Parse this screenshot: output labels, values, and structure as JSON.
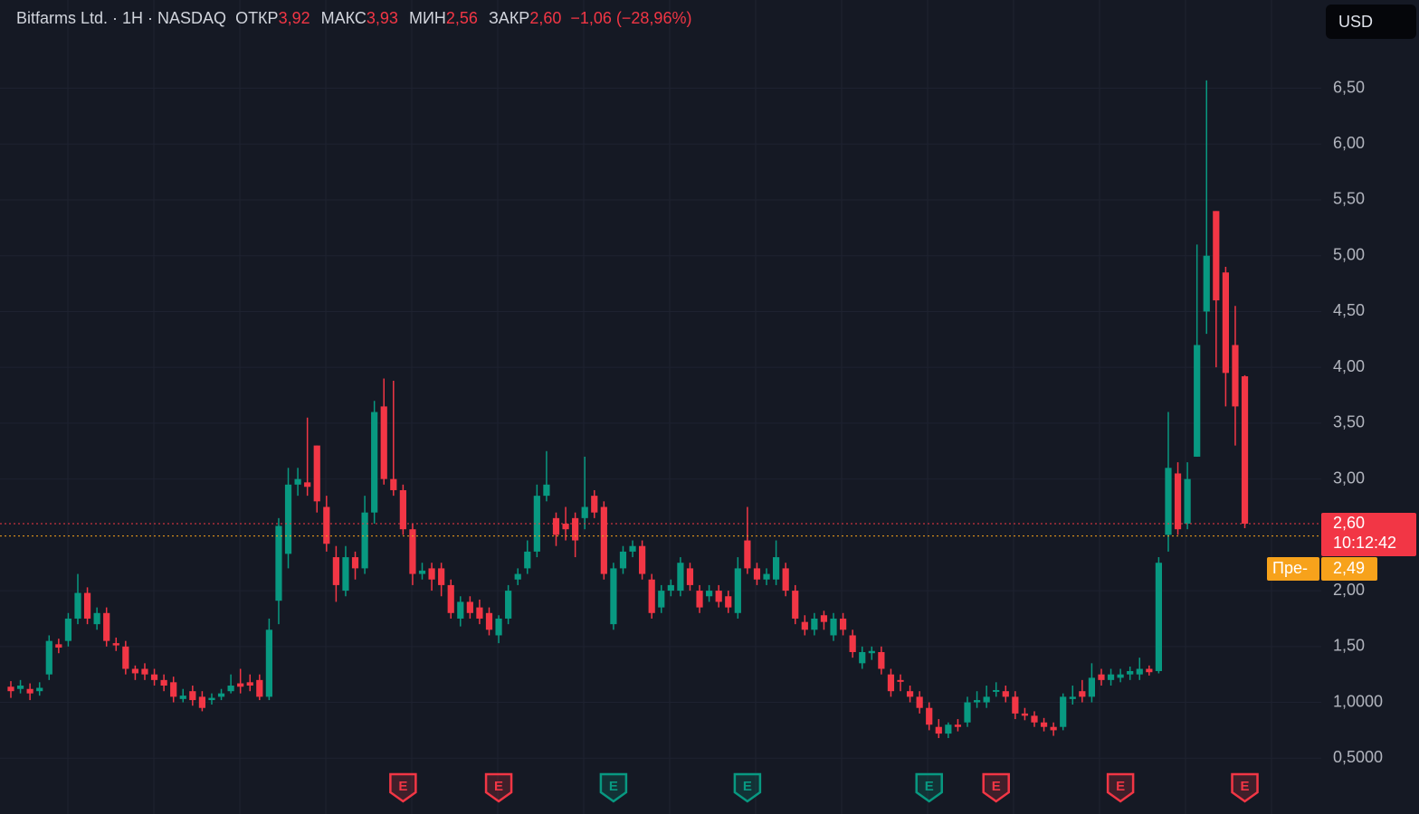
{
  "header": {
    "symbol": "Bitfarms Ltd. · 1H · NASDAQ",
    "fields": [
      {
        "name": "ОТКР",
        "value": "3,92"
      },
      {
        "name": "МАКС",
        "value": "3,93"
      },
      {
        "name": "МИН",
        "value": "2,56"
      },
      {
        "name": "ЗАКР",
        "value": "2,60"
      }
    ],
    "change": "−1,06 (−28,96%)",
    "currency": "USD"
  },
  "chart_data": {
    "type": "candlestick",
    "up_color": "#089981",
    "down_color": "#f23645",
    "grid": true,
    "ylim": [
      0,
      7.29
    ],
    "yticks": [
      {
        "value": 6.5,
        "label": "6,50"
      },
      {
        "value": 6,
        "label": "6,00"
      },
      {
        "value": 5.5,
        "label": "5,50"
      },
      {
        "value": 5,
        "label": "5,00"
      },
      {
        "value": 4.5,
        "label": "4,50"
      },
      {
        "value": 4,
        "label": "4,00"
      },
      {
        "value": 3.5,
        "label": "3,50"
      },
      {
        "value": 3,
        "label": "3,00"
      },
      {
        "value": 2,
        "label": "2,00"
      },
      {
        "value": 1.5,
        "label": "1,50"
      },
      {
        "value": 1,
        "label": "1,0000"
      },
      {
        "value": 0.5,
        "label": "0,5000"
      }
    ],
    "open": [
      1.14,
      1.12,
      1.12,
      1.1,
      1.25,
      1.52,
      1.55,
      1.75,
      1.98,
      1.7,
      1.8,
      1.53,
      1.5,
      1.3,
      1.3,
      1.25,
      1.2,
      1.18,
      1.03,
      1.1,
      1.05,
      1.02,
      1.05,
      1.1,
      1.17,
      1.18,
      1.2,
      1.05,
      1.91,
      2.33,
      2.95,
      2.97,
      3.3,
      2.75,
      2.3,
      2.0,
      2.3,
      2.2,
      2.7,
      3.65,
      3.0,
      2.9,
      2.55,
      2.15,
      2.2,
      2.2,
      2.05,
      1.75,
      1.9,
      1.85,
      1.8,
      1.6,
      1.75,
      2.1,
      2.2,
      2.35,
      2.85,
      2.65,
      2.6,
      2.65,
      2.65,
      2.85,
      2.75,
      1.7,
      2.2,
      2.35,
      2.4,
      2.1,
      1.85,
      2.0,
      2.0,
      2.2,
      2.0,
      1.95,
      2.0,
      1.95,
      1.8,
      2.45,
      2.2,
      2.1,
      2.1,
      2.2,
      2.0,
      1.72,
      1.65,
      1.78,
      1.6,
      1.75,
      1.6,
      1.35,
      1.44,
      1.45,
      1.25,
      1.2,
      1.1,
      1.05,
      0.95,
      0.78,
      0.72,
      0.8,
      0.82,
      1.0,
      1.0,
      1.1,
      1.1,
      1.05,
      0.9,
      0.88,
      0.82,
      0.78,
      0.78,
      1.03,
      1.1,
      1.05,
      1.25,
      1.2,
      1.22,
      1.25,
      1.25,
      1.3,
      1.28,
      2.5,
      3.05,
      2.6,
      3.2,
      4.5,
      5.4,
      4.85,
      4.2,
      3.92
    ],
    "close": [
      1.1,
      1.15,
      1.08,
      1.13,
      1.55,
      1.49,
      1.75,
      1.98,
      1.75,
      1.8,
      1.55,
      1.51,
      1.3,
      1.26,
      1.25,
      1.2,
      1.15,
      1.05,
      1.06,
      1.02,
      0.95,
      1.04,
      1.08,
      1.15,
      1.14,
      1.15,
      1.05,
      1.65,
      2.58,
      2.95,
      3.0,
      2.93,
      2.8,
      2.42,
      2.05,
      2.3,
      2.2,
      2.7,
      3.6,
      3.0,
      2.9,
      2.55,
      2.15,
      2.18,
      2.1,
      2.05,
      1.8,
      1.9,
      1.8,
      1.75,
      1.65,
      1.75,
      2.0,
      2.15,
      2.35,
      2.85,
      2.95,
      2.5,
      2.55,
      2.45,
      2.75,
      2.7,
      2.15,
      2.2,
      2.35,
      2.4,
      2.15,
      1.8,
      2.0,
      2.05,
      2.25,
      2.05,
      1.85,
      2.0,
      1.9,
      1.85,
      2.2,
      2.2,
      2.1,
      2.15,
      2.3,
      2.0,
      1.75,
      1.65,
      1.75,
      1.72,
      1.75,
      1.65,
      1.45,
      1.45,
      1.46,
      1.3,
      1.1,
      1.19,
      1.05,
      0.95,
      0.8,
      0.72,
      0.8,
      0.78,
      1.0,
      1.02,
      1.05,
      1.11,
      1.05,
      0.9,
      0.88,
      0.82,
      0.78,
      0.75,
      1.05,
      1.05,
      1.05,
      1.22,
      1.2,
      1.25,
      1.25,
      1.28,
      1.3,
      1.27,
      2.25,
      3.1,
      2.55,
      3.0,
      4.2,
      5.0,
      4.6,
      3.95,
      3.65,
      2.6
    ],
    "high": [
      1.19,
      1.2,
      1.17,
      1.18,
      1.6,
      1.57,
      1.8,
      2.15,
      2.03,
      1.85,
      1.85,
      1.58,
      1.55,
      1.33,
      1.35,
      1.3,
      1.25,
      1.23,
      1.12,
      1.15,
      1.1,
      1.08,
      1.12,
      1.25,
      1.3,
      1.25,
      1.25,
      1.75,
      2.65,
      3.1,
      3.1,
      3.55,
      3.3,
      2.85,
      2.4,
      2.4,
      2.35,
      2.85,
      3.7,
      3.9,
      3.88,
      2.95,
      2.6,
      2.25,
      2.25,
      2.25,
      2.1,
      1.95,
      1.95,
      1.92,
      1.85,
      1.78,
      2.05,
      2.2,
      2.45,
      2.95,
      3.25,
      2.7,
      2.75,
      2.7,
      3.2,
      2.9,
      2.8,
      2.25,
      2.4,
      2.45,
      2.45,
      2.15,
      2.05,
      2.1,
      2.3,
      2.25,
      2.05,
      2.05,
      2.05,
      2.0,
      2.3,
      2.75,
      2.25,
      2.2,
      2.45,
      2.25,
      2.05,
      1.78,
      1.8,
      1.82,
      1.8,
      1.8,
      1.65,
      1.5,
      1.5,
      1.5,
      1.3,
      1.25,
      1.15,
      1.1,
      1.0,
      0.85,
      0.82,
      0.85,
      1.05,
      1.1,
      1.15,
      1.18,
      1.15,
      1.1,
      0.95,
      0.92,
      0.86,
      0.82,
      1.08,
      1.15,
      1.2,
      1.35,
      1.3,
      1.3,
      1.3,
      1.32,
      1.4,
      1.33,
      2.3,
      3.6,
      3.15,
      3.15,
      5.1,
      6.57,
      5.4,
      4.9,
      4.55,
      3.93
    ],
    "low": [
      1.04,
      1.08,
      1.02,
      1.06,
      1.2,
      1.44,
      1.5,
      1.7,
      1.7,
      1.65,
      1.5,
      1.46,
      1.25,
      1.2,
      1.2,
      1.15,
      1.1,
      1.0,
      1.0,
      0.97,
      0.92,
      0.98,
      1.02,
      1.08,
      1.08,
      1.1,
      1.02,
      1.02,
      1.7,
      2.2,
      2.85,
      2.85,
      2.7,
      2.35,
      1.9,
      1.95,
      2.1,
      2.15,
      2.6,
      2.95,
      2.85,
      2.5,
      2.05,
      2.1,
      2.0,
      1.95,
      1.75,
      1.68,
      1.75,
      1.7,
      1.6,
      1.53,
      1.7,
      2.05,
      2.15,
      2.3,
      2.8,
      2.4,
      2.45,
      2.3,
      2.55,
      2.65,
      2.1,
      1.65,
      2.15,
      2.3,
      2.1,
      1.75,
      1.8,
      1.95,
      1.95,
      2.0,
      1.8,
      1.9,
      1.85,
      1.8,
      1.75,
      2.15,
      2.05,
      2.05,
      2.05,
      1.95,
      1.7,
      1.6,
      1.6,
      1.65,
      1.55,
      1.6,
      1.4,
      1.3,
      1.38,
      1.25,
      1.05,
      1.1,
      1.0,
      0.9,
      0.75,
      0.68,
      0.68,
      0.74,
      0.78,
      0.95,
      0.95,
      1.05,
      1.0,
      0.85,
      0.84,
      0.78,
      0.74,
      0.7,
      0.75,
      0.98,
      1.0,
      1.0,
      1.15,
      1.15,
      1.18,
      1.2,
      1.2,
      1.24,
      1.26,
      2.35,
      2.5,
      2.55,
      3.2,
      4.3,
      4.0,
      3.65,
      3.3,
      2.56
    ],
    "last_price": {
      "value": 2.6,
      "label": "2,60",
      "countdown": "10:12:42",
      "color": "#f23645"
    },
    "premarket": {
      "name": "Пре-",
      "value": 2.49,
      "label": "2,49",
      "color": "#f7a21b"
    },
    "earnings": [
      {
        "index": 41,
        "label": "E",
        "color": "#f23645"
      },
      {
        "index": 51,
        "label": "E",
        "color": "#f23645"
      },
      {
        "index": 63,
        "label": "E",
        "color": "#089981"
      },
      {
        "index": 77,
        "label": "E",
        "color": "#089981"
      },
      {
        "index": 96,
        "label": "E",
        "color": "#089981"
      },
      {
        "index": 103,
        "label": "E",
        "color": "#f23645"
      },
      {
        "index": 116,
        "label": "E",
        "color": "#f23645"
      },
      {
        "index": 129,
        "label": "E",
        "color": "#f23645"
      }
    ]
  }
}
